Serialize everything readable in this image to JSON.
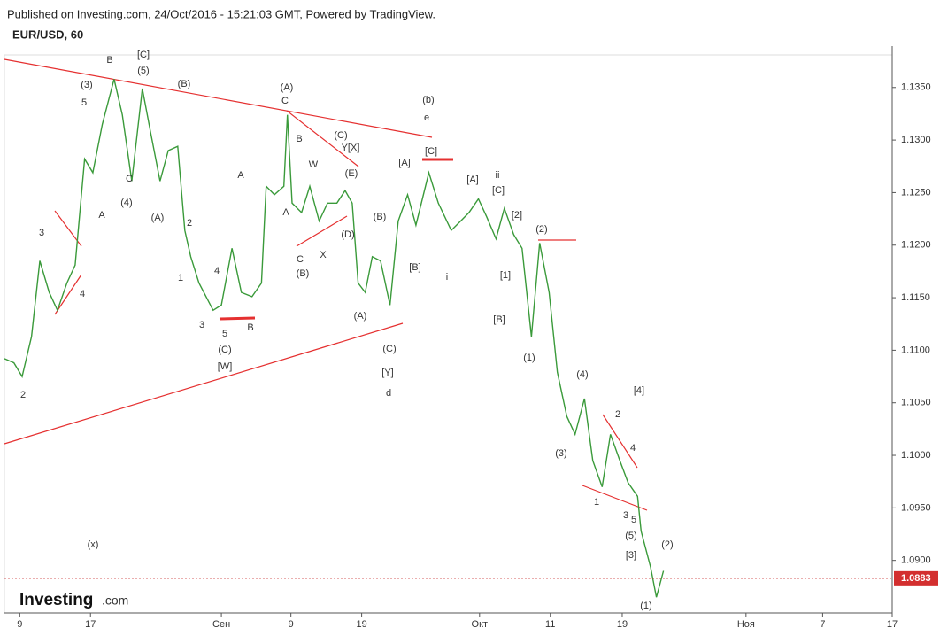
{
  "chart_data": {
    "type": "line",
    "published": "Published on Investing.com, 24/Oct/2016 - 15:21:03 GMT, Powered by TradingView.",
    "title": "EUR/USD, 60",
    "brand": "Investing",
    "brand_suffix": ".com",
    "color": "#3a9a3a",
    "x": [
      -1.3,
      -0.5,
      0.2,
      1.0,
      1.7,
      2.5,
      3.2,
      4.0,
      4.7,
      5.5,
      6.2,
      7.0,
      8.0,
      8.7,
      9.5,
      10.4,
      11.1,
      11.9,
      12.6,
      13.4,
      14.0,
      14.5,
      15.2,
      16.4,
      17.1,
      18.0,
      18.8,
      19.7,
      20.5,
      20.9,
      21.6,
      22.4,
      22.7,
      23.1,
      23.9,
      24.6,
      25.4,
      26.1,
      26.9,
      27.6,
      28.2,
      28.7,
      29.3,
      29.9,
      30.6,
      31.4,
      32.1,
      32.9,
      33.6,
      34.7,
      35.5,
      36.6,
      37.4,
      38.1,
      38.9,
      39.6,
      40.4,
      41.1,
      41.9,
      42.6,
      43.4,
      44.1,
      44.9,
      45.6,
      46.4,
      47.1,
      47.9,
      48.6,
      49.4,
      50.1,
      50.9,
      51.6,
      52.4,
      52.7,
      53.5,
      54.0,
      54.6
    ],
    "values": [
      1.1092,
      1.1088,
      1.1075,
      1.1113,
      1.1185,
      1.1155,
      1.1138,
      1.1164,
      1.1181,
      1.1282,
      1.1269,
      1.1315,
      1.1358,
      1.1324,
      1.1261,
      1.1349,
      1.1307,
      1.1261,
      1.129,
      1.1294,
      1.1214,
      1.1189,
      1.1164,
      1.1138,
      1.1143,
      1.1197,
      1.1155,
      1.1151,
      1.1164,
      1.1256,
      1.1248,
      1.1256,
      1.1324,
      1.124,
      1.1231,
      1.1256,
      1.1223,
      1.124,
      1.124,
      1.1252,
      1.124,
      1.1164,
      1.1155,
      1.1189,
      1.1185,
      1.1143,
      1.1223,
      1.1248,
      1.1219,
      1.1269,
      1.124,
      1.1214,
      1.1223,
      1.1231,
      1.1244,
      1.1227,
      1.1206,
      1.1235,
      1.121,
      1.1197,
      1.1113,
      1.1202,
      1.1155,
      1.1079,
      1.1037,
      1.102,
      1.1054,
      1.0995,
      1.097,
      1.102,
      1.0995,
      1.0974,
      1.0961,
      1.0928,
      1.0894,
      1.0865,
      1.089
    ],
    "xlim": [
      -1.3,
      74
    ],
    "xticks": [
      {
        "value": 0,
        "label": "9"
      },
      {
        "value": 6,
        "label": "17"
      },
      {
        "value": 17.1,
        "label": "Сен"
      },
      {
        "value": 23,
        "label": "9"
      },
      {
        "value": 29,
        "label": "19"
      },
      {
        "value": 39,
        "label": "Окт"
      },
      {
        "value": 45,
        "label": "11"
      },
      {
        "value": 51.1,
        "label": "19"
      },
      {
        "value": 61.6,
        "label": "Ноя"
      },
      {
        "value": 68.1,
        "label": "7"
      },
      {
        "value": 74,
        "label": "17"
      }
    ],
    "ylim": [
      1.085,
      1.1381
    ],
    "yticks": [
      {
        "value": 1.09,
        "label": "1.0900"
      },
      {
        "value": 1.095,
        "label": "1.0950"
      },
      {
        "value": 1.1,
        "label": "1.1000"
      },
      {
        "value": 1.105,
        "label": "1.1050"
      },
      {
        "value": 1.11,
        "label": "1.1100"
      },
      {
        "value": 1.115,
        "label": "1.1150"
      },
      {
        "value": 1.12,
        "label": "1.1200"
      },
      {
        "value": 1.125,
        "label": "1.1250"
      },
      {
        "value": 1.13,
        "label": "1.1300"
      },
      {
        "value": 1.135,
        "label": "1.1350"
      }
    ],
    "last_price": 1.0883,
    "annotations": [
      "2",
      "3",
      "4",
      "(3)",
      "5",
      "B",
      "[C]",
      "(5)",
      "A",
      "C",
      "(4)",
      "(A)",
      "(B)",
      "2",
      "1",
      "4",
      "3",
      "5",
      "B",
      "(C)",
      "[W]",
      "A",
      "(A)",
      "C",
      "B",
      "A",
      "W",
      "(C)",
      "Y[X]",
      "(E)",
      "X",
      "C",
      "(B)",
      "(D)",
      "(B)",
      "(A)",
      "(C)",
      "[Y]",
      "d",
      "(b)",
      "e",
      "[A]",
      "[C]",
      "[B]",
      "i",
      "[A]",
      "ii",
      "[C]",
      "[2]",
      "[1]",
      "[B]",
      "(2)",
      "(1)",
      "(4)",
      "(3)",
      "2",
      "4",
      "[4]",
      "1",
      "3",
      "5",
      "(5)",
      "[3]",
      "(2)",
      "(1)",
      "(x)"
    ]
  }
}
